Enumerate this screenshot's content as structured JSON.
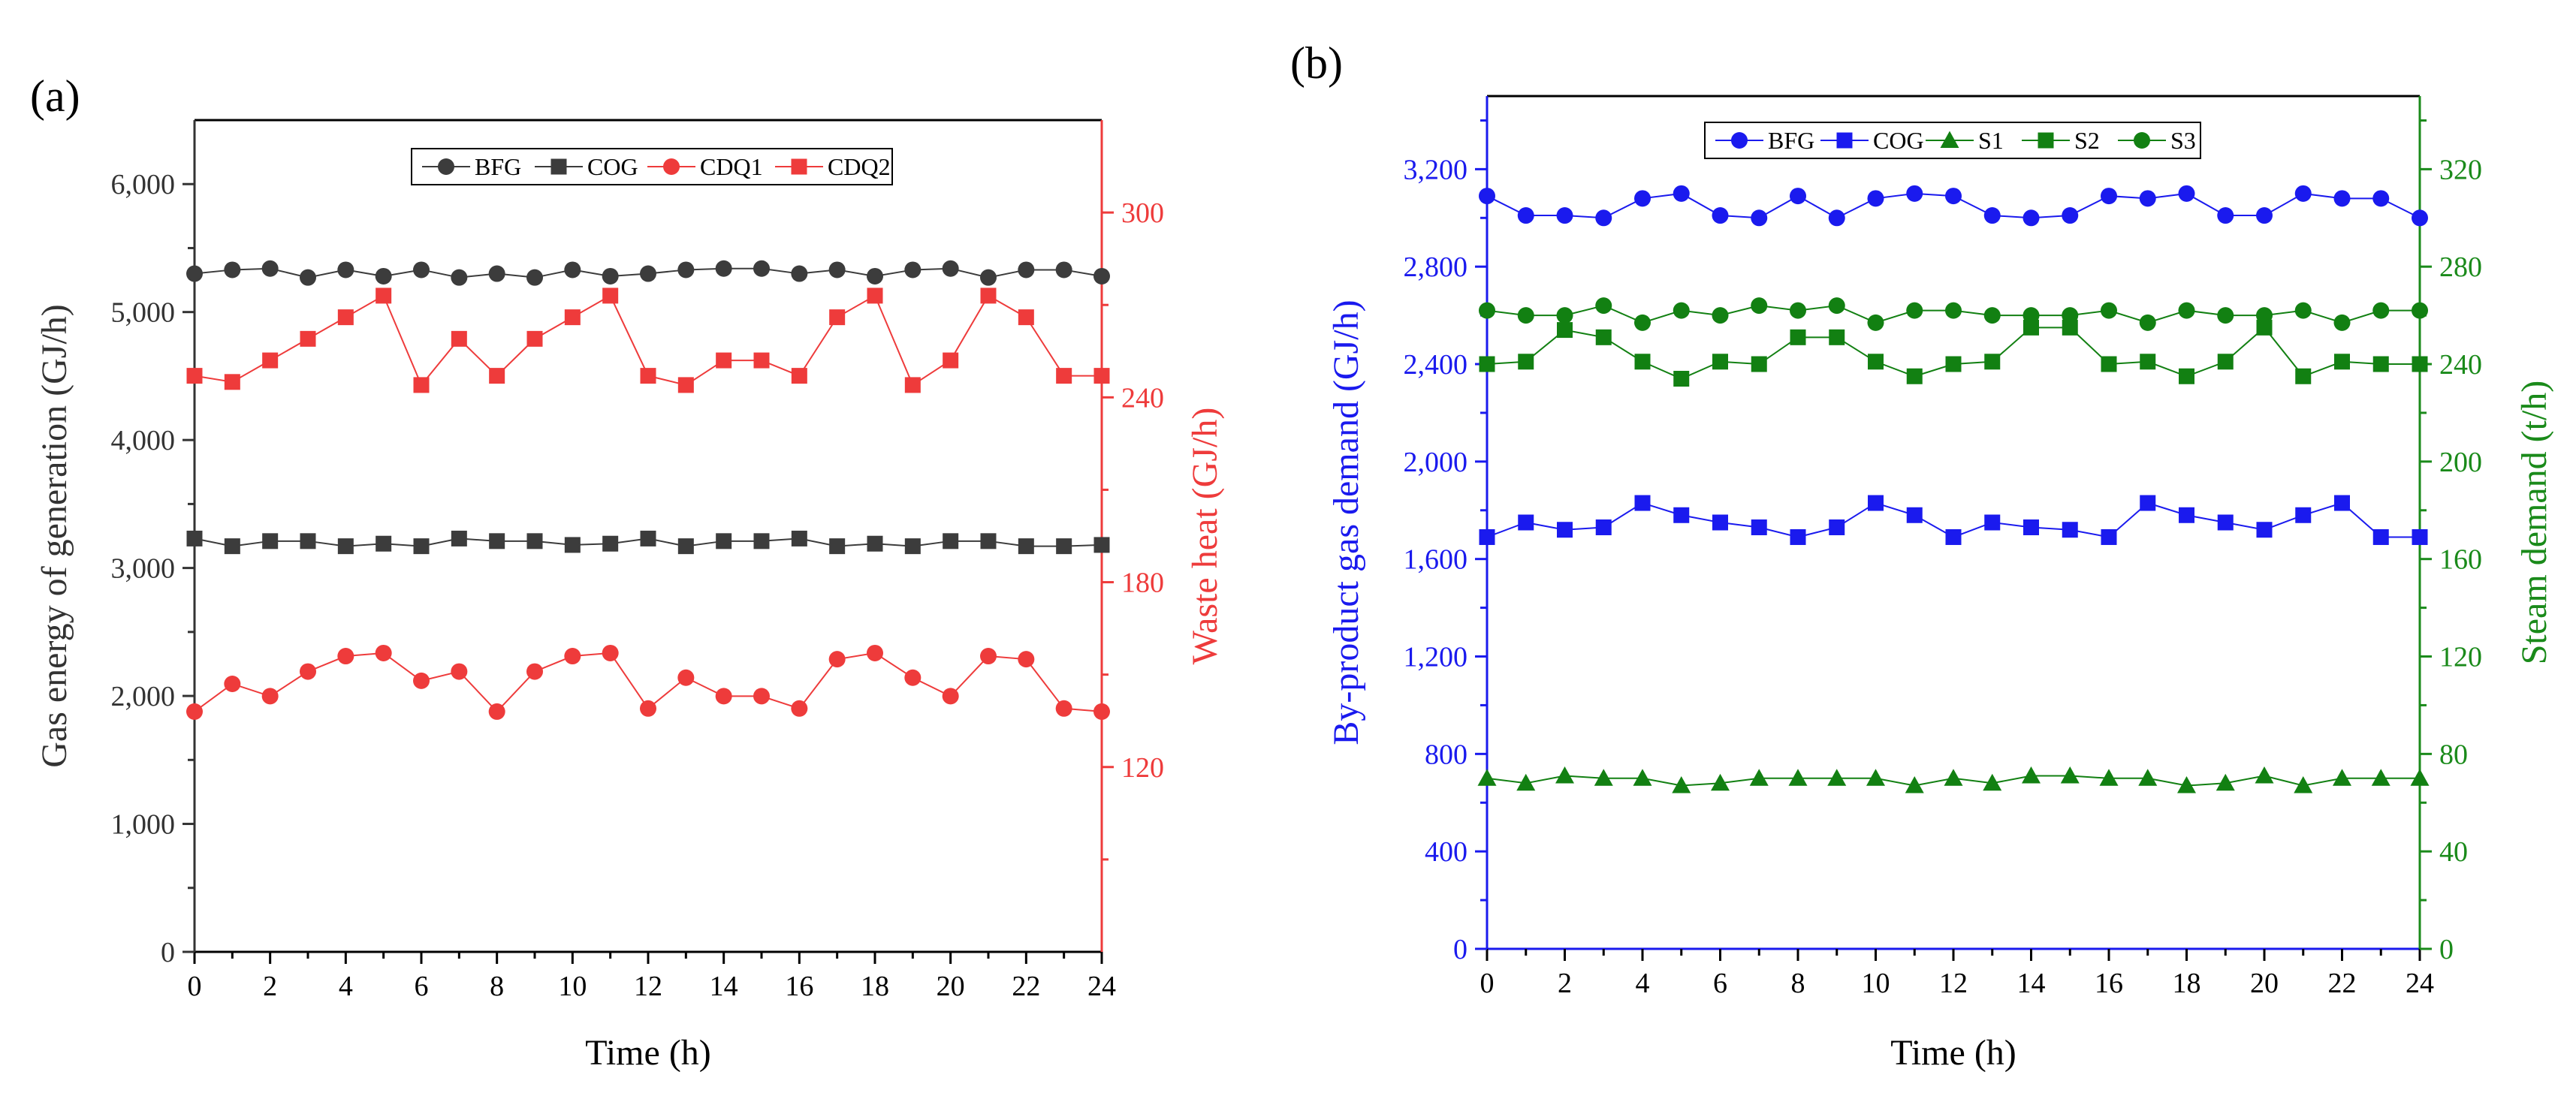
{
  "chart_data": [
    {
      "panel_label": "(a)",
      "type": "line",
      "x": [
        0,
        1,
        2,
        3,
        4,
        5,
        6,
        7,
        8,
        9,
        10,
        11,
        12,
        13,
        14,
        15,
        16,
        17,
        18,
        19,
        20,
        21,
        22,
        23,
        24
      ],
      "xlabel": "Time (h)",
      "xlim": [
        0,
        24
      ],
      "x_ticks": [
        0,
        2,
        4,
        6,
        8,
        10,
        12,
        14,
        16,
        18,
        20,
        22,
        24
      ],
      "x_tick_labels": [
        "0",
        "2",
        "4",
        "6",
        "8",
        "10",
        "12",
        "14",
        "16",
        "18",
        "20",
        "22",
        "24"
      ],
      "ylabel_left": "Gas energy of  generation (GJ/h)",
      "ylim_left": [
        0,
        6500
      ],
      "y_ticks_left": [
        0,
        1000,
        2000,
        3000,
        4000,
        5000,
        6000
      ],
      "y_tick_labels_left": [
        "0",
        "1,000",
        "2,000",
        "3,000",
        "4,000",
        "5,000",
        "6,000"
      ],
      "ylabel_right": "Waste heat  (GJ/h)",
      "ylim_right": [
        60,
        330
      ],
      "y_ticks_right": [
        120,
        180,
        240,
        300
      ],
      "y_tick_labels_right": [
        "120",
        "180",
        "240",
        "300"
      ],
      "legend_position": "top-center",
      "grid": false,
      "colors": {
        "left_axis": "#333333",
        "right_axis": "#ee3b3b",
        "gray": "#3c3c3c",
        "red": "#ee3b3b"
      },
      "series": [
        {
          "name": "BFG",
          "axis": "left",
          "marker": "circle",
          "color": "#3c3c3c",
          "values": [
            5300,
            5330,
            5340,
            5270,
            5330,
            5280,
            5330,
            5270,
            5300,
            5270,
            5330,
            5280,
            5300,
            5330,
            5340,
            5340,
            5300,
            5330,
            5280,
            5330,
            5340,
            5270,
            5330,
            5330,
            5280
          ]
        },
        {
          "name": "COG",
          "axis": "left",
          "marker": "square",
          "color": "#3c3c3c",
          "values": [
            3230,
            3170,
            3210,
            3210,
            3170,
            3190,
            3170,
            3230,
            3210,
            3210,
            3180,
            3190,
            3230,
            3170,
            3210,
            3210,
            3230,
            3170,
            3190,
            3170,
            3210,
            3210,
            3170,
            3170,
            3180
          ]
        },
        {
          "name": "CDQ1",
          "axis": "right",
          "marker": "circle",
          "color": "#ee3b3b",
          "values": [
            138,
            147,
            143,
            151,
            156,
            157,
            148,
            151,
            138,
            151,
            156,
            157,
            139,
            149,
            143,
            143,
            139,
            155,
            157,
            149,
            143,
            156,
            155,
            139,
            138
          ]
        },
        {
          "name": "CDQ2",
          "axis": "right",
          "marker": "square",
          "color": "#ee3b3b",
          "values": [
            247,
            245,
            252,
            259,
            266,
            273,
            244,
            259,
            247,
            259,
            266,
            273,
            247,
            244,
            252,
            252,
            247,
            266,
            273,
            244,
            252,
            273,
            266,
            247,
            247
          ]
        }
      ]
    },
    {
      "panel_label": "(b)",
      "type": "line",
      "x": [
        0,
        1,
        2,
        3,
        4,
        5,
        6,
        7,
        8,
        9,
        10,
        11,
        12,
        13,
        14,
        15,
        16,
        17,
        18,
        19,
        20,
        21,
        22,
        23,
        24
      ],
      "xlabel": "Time (h)",
      "xlim": [
        0,
        24
      ],
      "x_ticks": [
        0,
        2,
        4,
        6,
        8,
        10,
        12,
        14,
        16,
        18,
        20,
        22,
        24
      ],
      "x_tick_labels": [
        "0",
        "2",
        "4",
        "6",
        "8",
        "10",
        "12",
        "14",
        "16",
        "18",
        "20",
        "22",
        "24"
      ],
      "ylabel_left": "By-product gas demand (GJ/h)",
      "ylim_left": [
        0,
        3500
      ],
      "y_ticks_left": [
        0,
        400,
        800,
        1200,
        1600,
        2000,
        2400,
        2800,
        3200
      ],
      "y_tick_labels_left": [
        "0",
        "400",
        "800",
        "1,200",
        "1,600",
        "2,000",
        "2,400",
        "2,800",
        "3,200"
      ],
      "ylabel_right": "Steam demand (t/h)",
      "ylim_right": [
        0,
        350
      ],
      "y_ticks_right": [
        0,
        40,
        80,
        120,
        160,
        200,
        240,
        280,
        320
      ],
      "y_tick_labels_right": [
        "0",
        "40",
        "80",
        "120",
        "160",
        "200",
        "240",
        "280",
        "320"
      ],
      "legend_position": "top-center",
      "grid": false,
      "colors": {
        "left_axis": "#1a1aee",
        "right_axis": "#1a8a1a",
        "blue": "#1a1aee",
        "green": "#128012"
      },
      "series": [
        {
          "name": "BFG",
          "axis": "left",
          "marker": "circle",
          "color": "#1a1aee",
          "values": [
            3090,
            3010,
            3010,
            3000,
            3080,
            3100,
            3010,
            3000,
            3090,
            3000,
            3080,
            3100,
            3090,
            3010,
            3000,
            3010,
            3090,
            3080,
            3100,
            3010,
            3010,
            3100,
            3080,
            3080,
            3000
          ]
        },
        {
          "name": "COG",
          "axis": "left",
          "marker": "square",
          "color": "#1a1aee",
          "values": [
            1690,
            1750,
            1720,
            1730,
            1830,
            1780,
            1750,
            1730,
            1690,
            1730,
            1830,
            1780,
            1690,
            1750,
            1730,
            1720,
            1690,
            1830,
            1780,
            1750,
            1720,
            1780,
            1830,
            1690,
            1690
          ]
        },
        {
          "name": "S1",
          "axis": "right",
          "marker": "triangle",
          "color": "#128012",
          "values": [
            70,
            68,
            71,
            70,
            70,
            67,
            68,
            70,
            70,
            70,
            70,
            67,
            70,
            68,
            71,
            71,
            70,
            70,
            67,
            68,
            71,
            67,
            70,
            70,
            70
          ]
        },
        {
          "name": "S2",
          "axis": "right",
          "marker": "square",
          "color": "#128012",
          "values": [
            240,
            241,
            254,
            251,
            241,
            234,
            241,
            240,
            251,
            251,
            241,
            235,
            240,
            241,
            255,
            255,
            240,
            241,
            235,
            241,
            255,
            235,
            241,
            240,
            240
          ]
        },
        {
          "name": "S3",
          "axis": "right",
          "marker": "circle",
          "color": "#128012",
          "values": [
            262,
            260,
            260,
            264,
            257,
            262,
            260,
            264,
            262,
            264,
            257,
            262,
            262,
            260,
            260,
            260,
            262,
            257,
            262,
            260,
            260,
            262,
            257,
            262,
            262
          ]
        }
      ]
    }
  ]
}
